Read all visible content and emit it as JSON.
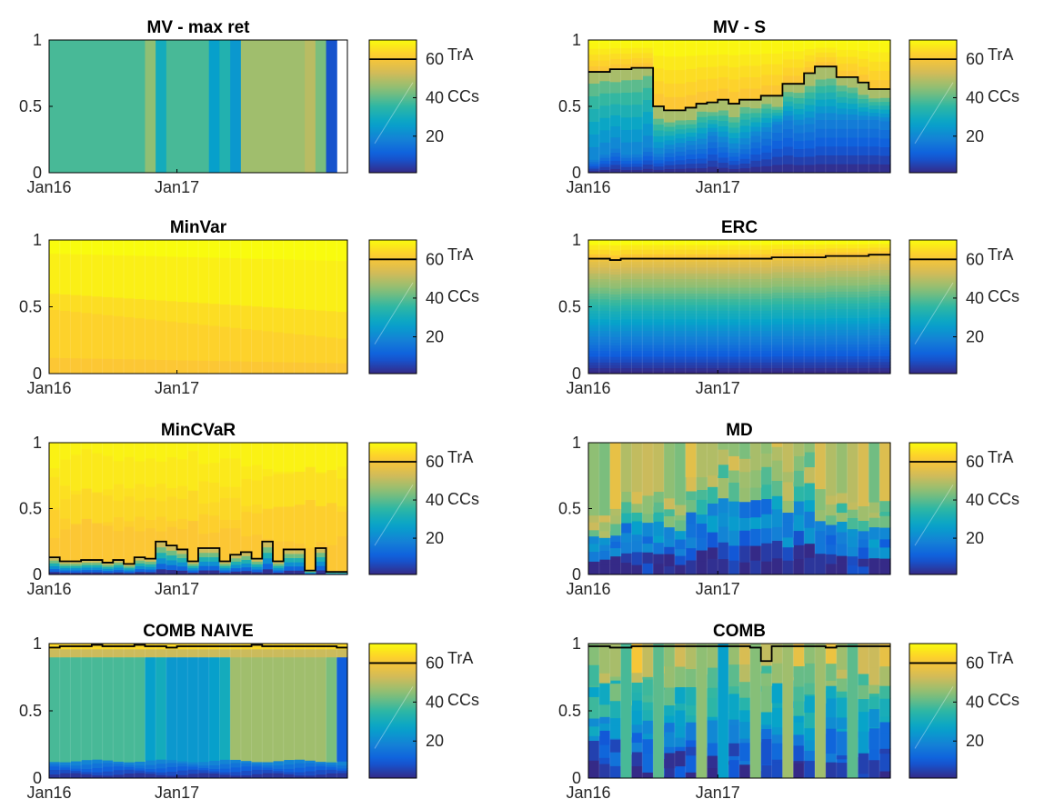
{
  "figure": {
    "x_tick_labels": [
      "Jan16",
      "Jan17"
    ],
    "y_tick_labels": [
      "0",
      "0.5",
      "1"
    ],
    "colorbar": {
      "ticks": [
        "20",
        "40",
        "60"
      ],
      "labels": [
        "TrA",
        "CCs"
      ]
    }
  },
  "colors": {
    "parula": [
      "#352a87",
      "#0f5cdd",
      "#1481d6",
      "#06a4ca",
      "#2eb7a4",
      "#87bf77",
      "#d1bb59",
      "#fec832",
      "#f9fb0e"
    ],
    "threshold_line": "#000000",
    "axes": "#000000"
  },
  "chart_data": [
    {
      "type": "area",
      "title": "MV - max ret",
      "stacked": true,
      "x_range": [
        "Jan16",
        "Apr18"
      ],
      "ylim": [
        0,
        1
      ],
      "colormap": "parula",
      "color_range": [
        1,
        70
      ],
      "threshold_asset": 60,
      "periods": 28,
      "segments": [
        [
          0,
          9,
          38
        ],
        [
          9,
          10,
          45
        ],
        [
          10,
          11,
          30
        ],
        [
          11,
          15,
          38
        ],
        [
          15,
          16,
          26
        ],
        [
          16,
          17,
          33
        ],
        [
          17,
          18,
          24
        ],
        [
          18,
          24,
          47
        ],
        [
          24,
          25,
          50
        ],
        [
          25,
          26,
          43
        ],
        [
          26,
          27,
          8
        ]
      ],
      "traditional_share": []
    },
    {
      "type": "area",
      "title": "MV - S",
      "stacked": true,
      "x_range": [
        "Jan16",
        "Apr18"
      ],
      "ylim": [
        0,
        1
      ],
      "colormap": "parula",
      "color_range": [
        1,
        70
      ],
      "threshold_asset": 60,
      "periods": 28,
      "traditional_share": [
        0.76,
        0.76,
        0.78,
        0.78,
        0.79,
        0.79,
        0.5,
        0.47,
        0.47,
        0.49,
        0.52,
        0.53,
        0.55,
        0.52,
        0.55,
        0.55,
        0.58,
        0.58,
        0.67,
        0.67,
        0.75,
        0.8,
        0.8,
        0.72,
        0.72,
        0.68,
        0.63,
        0.63
      ]
    },
    {
      "type": "area",
      "title": "MinVar",
      "stacked": true,
      "x_range": [
        "Jan16",
        "Apr18"
      ],
      "ylim": [
        0,
        1
      ],
      "colormap": "parula",
      "color_range": [
        1,
        70
      ],
      "threshold_asset": 60,
      "periods": 28,
      "traditional_share": [
        0,
        0,
        0,
        0,
        0,
        0,
        0,
        0,
        0,
        0,
        0,
        0,
        0,
        0,
        0,
        0,
        0,
        0,
        0,
        0,
        0,
        0,
        0,
        0,
        0,
        0,
        0,
        0
      ]
    },
    {
      "type": "area",
      "title": "ERC",
      "stacked": true,
      "x_range": [
        "Jan16",
        "Apr18"
      ],
      "ylim": [
        0,
        1
      ],
      "colormap": "parula",
      "color_range": [
        1,
        70
      ],
      "threshold_asset": 60,
      "periods": 28,
      "traditional_share": [
        0.86,
        0.86,
        0.85,
        0.86,
        0.86,
        0.86,
        0.86,
        0.86,
        0.86,
        0.86,
        0.86,
        0.86,
        0.86,
        0.86,
        0.86,
        0.86,
        0.86,
        0.87,
        0.87,
        0.87,
        0.87,
        0.87,
        0.88,
        0.88,
        0.88,
        0.88,
        0.89,
        0.89
      ]
    },
    {
      "type": "area",
      "title": "MinCVaR",
      "stacked": true,
      "x_range": [
        "Jan16",
        "Apr18"
      ],
      "ylim": [
        0,
        1
      ],
      "colormap": "parula",
      "color_range": [
        1,
        70
      ],
      "threshold_asset": 60,
      "periods": 28,
      "traditional_share": [
        0.13,
        0.1,
        0.1,
        0.11,
        0.11,
        0.09,
        0.11,
        0.08,
        0.13,
        0.12,
        0.25,
        0.22,
        0.19,
        0.1,
        0.2,
        0.2,
        0.1,
        0.15,
        0.17,
        0.12,
        0.25,
        0.1,
        0.19,
        0.19,
        0.03,
        0.2,
        0.02,
        0.02
      ]
    },
    {
      "type": "area",
      "title": "MD",
      "stacked": true,
      "x_range": [
        "Jan16",
        "Apr18"
      ],
      "ylim": [
        0,
        1
      ],
      "colormap": "parula",
      "color_range": [
        1,
        70
      ],
      "threshold_asset": 60,
      "periods": 28,
      "traditional_share": []
    },
    {
      "type": "area",
      "title": "COMB NAIVE",
      "stacked": true,
      "x_range": [
        "Jan16",
        "Apr18"
      ],
      "ylim": [
        0,
        1
      ],
      "colormap": "parula",
      "color_range": [
        1,
        70
      ],
      "threshold_asset": 60,
      "periods": 28,
      "traditional_share": [
        0.97,
        0.98,
        0.98,
        0.98,
        0.99,
        0.98,
        0.98,
        0.98,
        0.99,
        0.98,
        0.98,
        0.97,
        0.98,
        0.98,
        0.98,
        0.98,
        0.98,
        0.98,
        0.98,
        0.99,
        0.98,
        0.98,
        0.98,
        0.98,
        0.98,
        0.98,
        0.98,
        0.97
      ]
    },
    {
      "type": "area",
      "title": "COMB",
      "stacked": true,
      "x_range": [
        "Jan16",
        "Apr18"
      ],
      "ylim": [
        0,
        1
      ],
      "colormap": "parula",
      "color_range": [
        1,
        70
      ],
      "threshold_asset": 60,
      "periods": 28,
      "traditional_share": [
        0.98,
        0.98,
        0.97,
        0.97,
        0.98,
        0.98,
        0.98,
        0.98,
        0.98,
        0.98,
        0.98,
        0.98,
        0.98,
        0.98,
        0.98,
        0.97,
        0.87,
        0.98,
        0.98,
        0.98,
        0.98,
        0.98,
        0.97,
        0.98,
        0.98,
        0.98,
        0.98,
        0.98
      ]
    }
  ]
}
